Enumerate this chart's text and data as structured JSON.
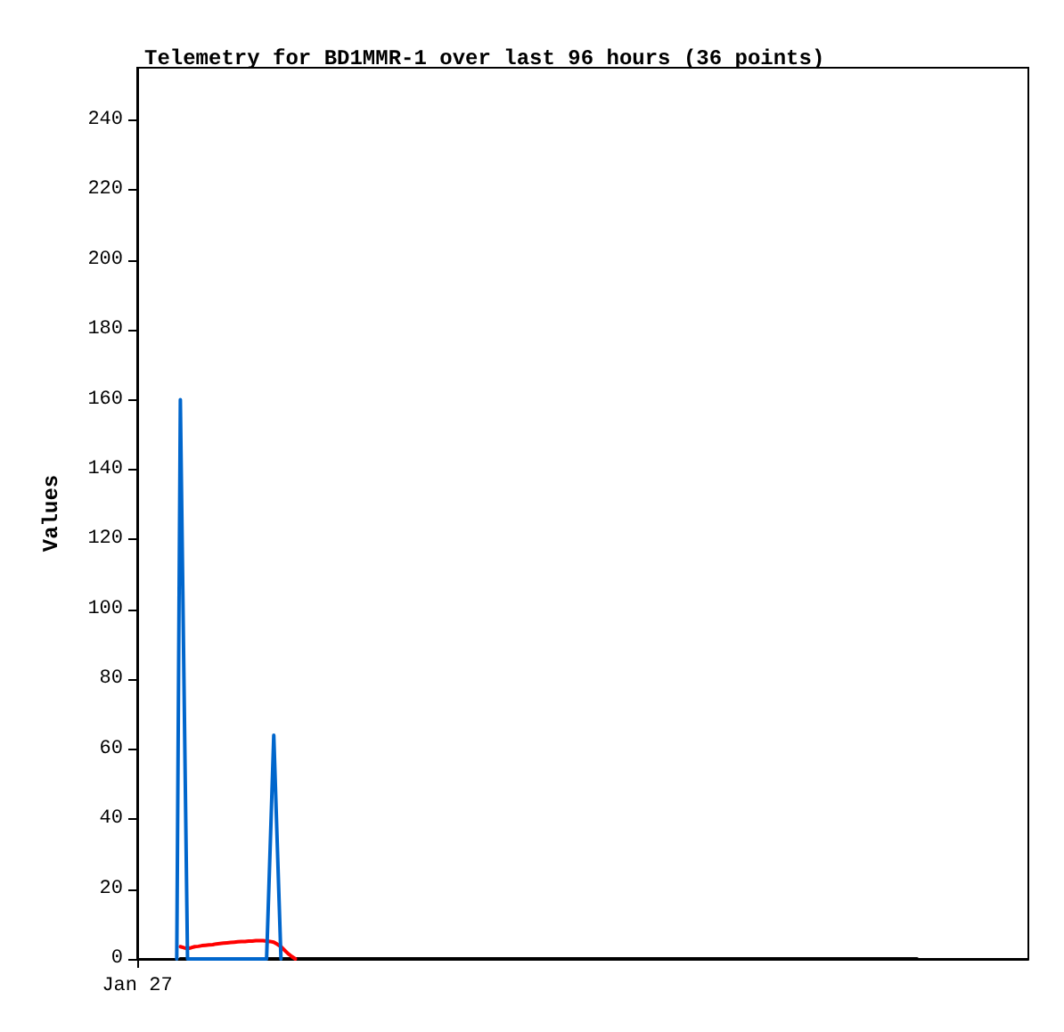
{
  "chart_data": {
    "type": "line",
    "title": "Telemetry for BD1MMR-1 over last 96 hours (36 points)",
    "ylabel": "Values",
    "categories": [
      "Jan 27",
      null,
      null,
      null,
      null,
      null,
      null,
      null,
      null,
      null,
      null,
      null,
      null,
      null,
      null,
      null,
      null,
      null,
      null,
      null,
      null,
      null,
      null,
      null,
      null,
      null,
      null,
      null,
      null,
      null,
      null,
      null,
      null,
      null,
      null,
      null,
      null,
      null,
      null,
      null,
      null,
      null,
      null,
      null,
      null,
      null,
      null,
      null,
      null,
      null,
      null,
      null,
      null,
      null,
      null,
      null,
      null,
      null,
      null,
      null,
      null,
      null,
      null,
      null,
      null,
      null,
      null,
      null,
      null,
      null,
      null,
      null,
      null,
      null,
      null,
      null,
      null,
      null,
      null,
      null,
      null,
      null,
      null,
      null,
      null,
      null,
      null,
      null,
      null,
      null,
      null,
      null,
      null,
      null,
      null,
      null,
      null,
      null,
      null,
      null,
      null,
      null,
      null,
      null,
      null,
      null,
      null,
      null,
      null,
      null,
      null,
      null,
      null,
      null,
      null,
      null,
      null,
      null,
      null,
      null,
      null,
      null,
      null,
      null,
      null,
      null,
      null,
      null,
      null,
      null,
      null,
      null,
      null,
      null,
      null,
      null,
      null,
      null,
      null,
      null,
      null,
      null,
      null,
      null,
      null,
      null,
      null,
      null,
      null,
      null,
      null,
      null,
      null,
      null,
      null,
      null,
      null,
      null,
      null,
      null,
      null,
      null,
      null,
      null,
      null,
      null,
      null,
      null,
      null,
      null,
      null,
      null,
      null,
      null,
      null,
      null,
      null,
      null,
      null,
      null,
      null,
      null,
      null,
      null,
      null,
      null,
      null,
      null,
      null,
      null,
      null,
      null,
      null,
      null,
      null,
      null,
      null,
      null,
      null,
      null,
      null,
      null,
      null,
      null,
      null,
      null,
      null,
      null,
      null,
      null,
      null,
      null,
      null,
      null,
      null,
      null,
      null,
      null,
      null,
      null,
      null,
      null,
      null,
      null,
      null,
      null,
      null,
      null,
      null,
      null,
      null,
      null,
      null,
      null,
      null,
      null,
      null,
      null,
      null,
      null,
      null,
      null,
      null,
      null,
      null,
      null,
      null,
      null,
      null
    ],
    "ylim": [
      0,
      255
    ],
    "yticks": [
      0,
      20,
      40,
      60,
      80,
      100,
      120,
      140,
      160,
      180,
      200,
      220,
      240
    ],
    "marker": "none",
    "line_style": "solid",
    "series": [
      {
        "color": "#000000",
        "values": [
          null,
          null,
          null,
          null,
          null,
          null,
          null,
          null,
          null,
          null,
          null,
          null,
          0,
          0,
          0,
          0,
          0,
          0,
          0,
          0,
          0,
          0,
          0,
          0,
          0,
          0,
          0,
          0,
          0,
          0,
          0,
          0,
          0,
          0,
          0,
          0,
          0,
          0,
          0,
          0,
          0,
          0,
          0,
          0,
          0,
          0,
          0,
          0,
          0,
          0,
          0,
          0,
          0,
          0,
          0,
          0,
          0,
          0,
          0,
          0,
          0,
          0,
          0,
          0,
          0,
          0,
          0,
          0,
          0,
          0,
          0,
          0,
          0,
          0,
          0,
          0,
          0,
          0,
          0,
          0,
          0,
          0,
          0,
          0,
          0,
          0,
          0,
          0,
          0,
          0,
          0,
          0,
          0,
          0,
          0,
          0,
          0,
          0,
          0,
          0,
          0,
          0,
          0,
          0,
          0,
          0,
          0,
          0,
          0,
          0,
          0,
          0,
          0,
          0,
          0,
          0,
          0,
          0,
          0,
          0,
          0,
          0,
          0,
          0,
          0,
          0,
          0,
          0,
          0,
          0,
          0,
          0,
          0,
          0,
          0,
          0,
          0,
          0,
          0,
          0,
          0,
          0,
          0,
          0,
          0,
          0,
          0,
          0,
          0,
          0,
          0,
          0,
          0,
          0,
          0,
          0,
          0,
          0,
          0,
          0,
          0,
          0,
          0,
          0,
          0,
          0,
          0,
          0,
          0,
          0,
          0,
          0,
          0,
          0,
          0,
          0,
          0,
          0,
          0,
          0,
          0,
          0,
          0,
          0,
          0,
          0,
          0,
          0,
          0,
          0,
          0,
          0,
          0,
          0,
          0,
          0,
          0,
          0,
          0,
          0,
          0,
          0,
          0,
          0,
          0,
          0,
          0,
          0,
          0,
          0,
          0,
          0,
          0,
          0,
          0,
          0,
          0,
          0,
          null,
          null,
          null,
          null,
          null,
          null,
          null,
          null,
          null,
          null,
          null,
          null,
          null,
          null,
          null,
          null,
          null,
          null,
          null,
          null,
          null,
          null,
          null,
          null,
          null,
          null,
          null,
          null,
          null,
          null,
          null
        ]
      },
      {
        "color": "#ff0000",
        "values": [
          null,
          null,
          null,
          null,
          null,
          null,
          null,
          null,
          null,
          null,
          null,
          null,
          3.5,
          3.2,
          3.0,
          3.2,
          3.5,
          3.6,
          3.8,
          3.9,
          4.0,
          4.1,
          4.3,
          4.4,
          4.5,
          4.6,
          4.7,
          4.8,
          4.9,
          5.0,
          5.0,
          5.1,
          5.1,
          5.2,
          5.2,
          5.2,
          5.1,
          5.0,
          4.8,
          4.2,
          3.5,
          2.5,
          1.5,
          0.7,
          0,
          null,
          null,
          null,
          null,
          null,
          null,
          null,
          null,
          null,
          null,
          null,
          null,
          null,
          null,
          null,
          null,
          null,
          null,
          null,
          null,
          null,
          null,
          null,
          null,
          null,
          null,
          null,
          null,
          null,
          null,
          null,
          null,
          null,
          null,
          null,
          null,
          null,
          null,
          null,
          null,
          null,
          null,
          null,
          null,
          null,
          null,
          null,
          null,
          null,
          null,
          null,
          null,
          null,
          null,
          null,
          null,
          null,
          null,
          null,
          null,
          null,
          null,
          null,
          null,
          null,
          null,
          null,
          null,
          null,
          null,
          null,
          null,
          null,
          null,
          null,
          null,
          null,
          null,
          null,
          null,
          null,
          null,
          null,
          null,
          null,
          null,
          null,
          null,
          null,
          null,
          null,
          null,
          null,
          null,
          null,
          null,
          null,
          null,
          null,
          null,
          null,
          null,
          null,
          null,
          null,
          null,
          null,
          null,
          null,
          null,
          null,
          null,
          null,
          null,
          null,
          null,
          null,
          null,
          null,
          null,
          null,
          null,
          null,
          null,
          null,
          null,
          null,
          null,
          null,
          null,
          null,
          null,
          null,
          null,
          null,
          null,
          null,
          null,
          null,
          null,
          null,
          null,
          null,
          null,
          null,
          null,
          null,
          null,
          null,
          null,
          null,
          null,
          null,
          null,
          null,
          null,
          null,
          null,
          null,
          null,
          null,
          null,
          null,
          null,
          null,
          null,
          null,
          null,
          null,
          null,
          null,
          null,
          null,
          null,
          null,
          null,
          null,
          null,
          null,
          null,
          null,
          null,
          null,
          null,
          null,
          null,
          null,
          null,
          null,
          null,
          null,
          null,
          null,
          null,
          null,
          null,
          null,
          null,
          null,
          null,
          null,
          null,
          null,
          null
        ]
      },
      {
        "color": "#0066cc",
        "values": [
          null,
          null,
          null,
          null,
          null,
          null,
          null,
          null,
          null,
          null,
          null,
          0,
          160,
          80,
          0,
          0,
          0,
          0,
          0,
          0,
          0,
          0,
          0,
          0,
          0,
          0,
          0,
          0,
          0,
          0,
          0,
          0,
          0,
          0,
          0,
          0,
          0,
          32,
          64,
          32,
          0,
          null,
          null,
          null,
          null,
          null,
          null,
          null,
          null,
          null,
          null,
          null,
          null,
          null,
          null,
          null,
          null,
          null,
          null,
          null,
          null,
          null,
          null,
          null,
          null,
          null,
          null,
          null,
          null,
          null,
          null,
          null,
          null,
          null,
          null,
          null,
          null,
          null,
          null,
          null,
          null,
          null,
          null,
          null,
          null,
          null,
          null,
          null,
          null,
          null,
          null,
          null,
          null,
          null,
          null,
          null,
          null,
          null,
          null,
          null,
          null,
          null,
          null,
          null,
          null,
          null,
          null,
          null,
          null,
          null,
          null,
          null,
          null,
          null,
          null,
          null,
          null,
          null,
          null,
          null,
          null,
          null,
          null,
          null,
          null,
          null,
          null,
          null,
          null,
          null,
          null,
          null,
          null,
          null,
          null,
          null,
          null,
          null,
          null,
          null,
          null,
          null,
          null,
          null,
          null,
          null,
          null,
          null,
          null,
          null,
          null,
          null,
          null,
          null,
          null,
          null,
          null,
          null,
          null,
          null,
          null,
          null,
          null,
          null,
          null,
          null,
          null,
          null,
          null,
          null,
          null,
          null,
          null,
          null,
          null,
          null,
          null,
          null,
          null,
          null,
          null,
          null,
          null,
          null,
          null,
          null,
          null,
          null,
          null,
          null,
          null,
          null,
          null,
          null,
          null,
          null,
          null,
          null,
          null,
          null,
          null,
          null,
          null,
          null,
          null,
          null,
          null,
          null,
          null,
          null,
          null,
          null,
          null,
          null,
          null,
          null,
          null,
          null,
          null,
          null,
          null,
          null,
          null,
          null,
          null,
          null,
          null,
          null,
          null,
          null,
          null,
          null,
          null,
          null,
          null,
          null,
          null,
          null,
          null,
          null,
          null,
          null,
          null,
          null,
          null,
          null,
          null,
          null,
          null
        ]
      }
    ]
  }
}
